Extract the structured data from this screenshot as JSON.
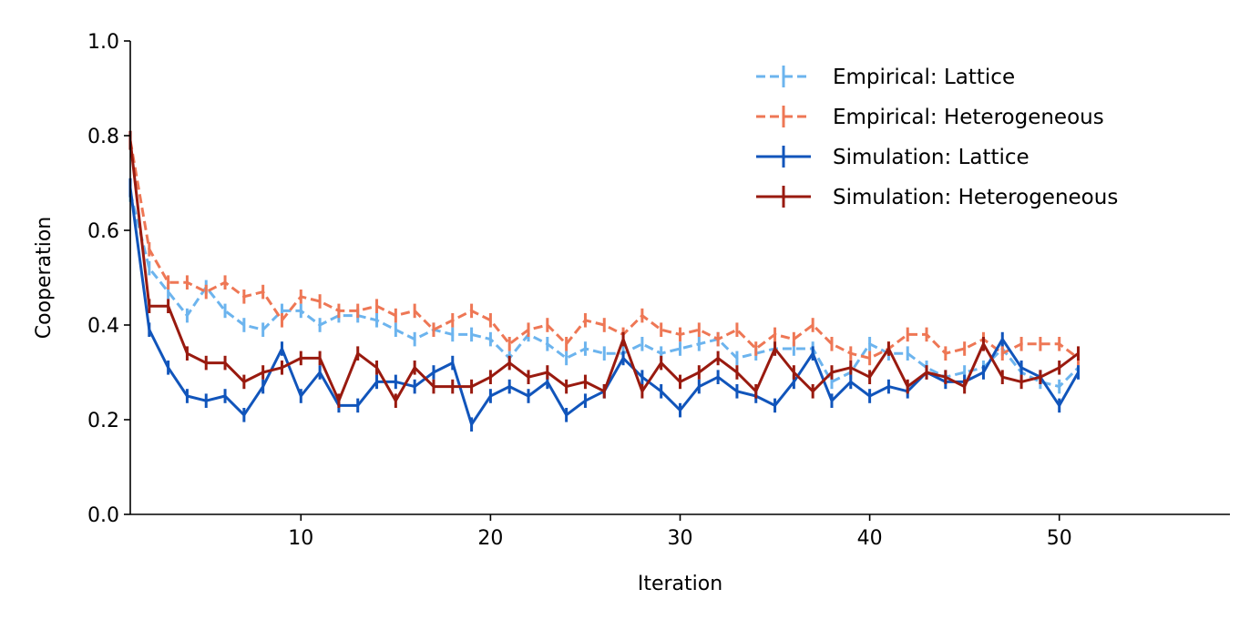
{
  "chart_data": {
    "type": "line",
    "title": "",
    "xlabel": "Iteration",
    "ylabel": "Cooperation",
    "xlim": [
      1,
      59
    ],
    "ylim": [
      0.0,
      1.0
    ],
    "xticks": [
      10,
      20,
      30,
      40,
      50
    ],
    "xtick_labels": [
      "10",
      "20",
      "30",
      "40",
      "50"
    ],
    "yticks": [
      0.0,
      0.2,
      0.4,
      0.6,
      0.8,
      1.0
    ],
    "ytick_labels": [
      "0.0",
      "0.2",
      "0.4",
      "0.6",
      "0.8",
      "1.0"
    ],
    "grid": false,
    "legend_position": "top-right",
    "series": [
      {
        "name": "Empirical: Lattice",
        "color": "#6cb4ee",
        "style": "dashed",
        "x": [
          1,
          2,
          3,
          4,
          5,
          6,
          7,
          8,
          9,
          10,
          11,
          12,
          13,
          14,
          15,
          16,
          17,
          18,
          19,
          20,
          21,
          22,
          23,
          24,
          25,
          26,
          27,
          28,
          29,
          30,
          31,
          32,
          33,
          34,
          35,
          36,
          37,
          38,
          39,
          40,
          41,
          42,
          43,
          44,
          45,
          46,
          47,
          48,
          49,
          50,
          51
        ],
        "y": [
          0.68,
          0.52,
          0.47,
          0.42,
          0.48,
          0.43,
          0.4,
          0.39,
          0.43,
          0.43,
          0.4,
          0.42,
          0.42,
          0.41,
          0.39,
          0.37,
          0.39,
          0.38,
          0.38,
          0.37,
          0.33,
          0.38,
          0.36,
          0.33,
          0.35,
          0.34,
          0.34,
          0.36,
          0.34,
          0.35,
          0.36,
          0.37,
          0.33,
          0.34,
          0.35,
          0.35,
          0.35,
          0.28,
          0.3,
          0.36,
          0.34,
          0.34,
          0.31,
          0.29,
          0.3,
          0.31,
          0.35,
          0.3,
          0.28,
          0.27,
          0.31
        ],
        "err": [
          0.02,
          0.015,
          0.015,
          0.015,
          0.015,
          0.015,
          0.015,
          0.015,
          0.015,
          0.015,
          0.015,
          0.015,
          0.015,
          0.015,
          0.015,
          0.015,
          0.015,
          0.015,
          0.015,
          0.015,
          0.015,
          0.015,
          0.015,
          0.015,
          0.015,
          0.015,
          0.015,
          0.015,
          0.015,
          0.015,
          0.015,
          0.015,
          0.015,
          0.015,
          0.015,
          0.015,
          0.015,
          0.015,
          0.015,
          0.015,
          0.015,
          0.015,
          0.015,
          0.015,
          0.015,
          0.015,
          0.015,
          0.015,
          0.015,
          0.015,
          0.015
        ]
      },
      {
        "name": "Empirical: Heterogeneous",
        "color": "#ee7755",
        "style": "dashed",
        "x": [
          1,
          2,
          3,
          4,
          5,
          6,
          7,
          8,
          9,
          10,
          11,
          12,
          13,
          14,
          15,
          16,
          17,
          18,
          19,
          20,
          21,
          22,
          23,
          24,
          25,
          26,
          27,
          28,
          29,
          30,
          31,
          32,
          33,
          34,
          35,
          36,
          37,
          38,
          39,
          40,
          41,
          42,
          43,
          44,
          45,
          46,
          47,
          48,
          49,
          50,
          51
        ],
        "y": [
          0.79,
          0.56,
          0.49,
          0.49,
          0.47,
          0.49,
          0.46,
          0.47,
          0.41,
          0.46,
          0.45,
          0.43,
          0.43,
          0.44,
          0.42,
          0.43,
          0.39,
          0.41,
          0.43,
          0.41,
          0.36,
          0.39,
          0.4,
          0.36,
          0.41,
          0.4,
          0.38,
          0.42,
          0.39,
          0.38,
          0.39,
          0.37,
          0.39,
          0.35,
          0.38,
          0.37,
          0.4,
          0.36,
          0.34,
          0.33,
          0.35,
          0.38,
          0.38,
          0.34,
          0.35,
          0.37,
          0.34,
          0.36,
          0.36,
          0.36,
          0.33
        ],
        "err": [
          0.02,
          0.015,
          0.015,
          0.015,
          0.015,
          0.015,
          0.015,
          0.015,
          0.015,
          0.015,
          0.015,
          0.015,
          0.015,
          0.015,
          0.015,
          0.015,
          0.015,
          0.015,
          0.015,
          0.015,
          0.015,
          0.015,
          0.015,
          0.015,
          0.015,
          0.015,
          0.015,
          0.015,
          0.015,
          0.015,
          0.015,
          0.015,
          0.015,
          0.015,
          0.015,
          0.015,
          0.015,
          0.015,
          0.015,
          0.015,
          0.015,
          0.015,
          0.015,
          0.015,
          0.015,
          0.015,
          0.015,
          0.015,
          0.015,
          0.015,
          0.015
        ]
      },
      {
        "name": "Simulation: Lattice",
        "color": "#1155bb",
        "style": "solid",
        "x": [
          1,
          2,
          3,
          4,
          5,
          6,
          7,
          8,
          9,
          10,
          11,
          12,
          13,
          14,
          15,
          16,
          17,
          18,
          19,
          20,
          21,
          22,
          23,
          24,
          25,
          26,
          27,
          28,
          29,
          30,
          31,
          32,
          33,
          34,
          35,
          36,
          37,
          38,
          39,
          40,
          41,
          42,
          43,
          44,
          45,
          46,
          47,
          48,
          49,
          50,
          51
        ],
        "y": [
          0.69,
          0.39,
          0.31,
          0.25,
          0.24,
          0.25,
          0.21,
          0.27,
          0.35,
          0.25,
          0.3,
          0.23,
          0.23,
          0.28,
          0.28,
          0.27,
          0.3,
          0.32,
          0.19,
          0.25,
          0.27,
          0.25,
          0.28,
          0.21,
          0.24,
          0.26,
          0.33,
          0.29,
          0.26,
          0.22,
          0.27,
          0.29,
          0.26,
          0.25,
          0.23,
          0.28,
          0.34,
          0.24,
          0.28,
          0.25,
          0.27,
          0.26,
          0.3,
          0.28,
          0.28,
          0.3,
          0.37,
          0.31,
          0.29,
          0.23,
          0.3
        ],
        "err": [
          0.02,
          0.015,
          0.015,
          0.015,
          0.015,
          0.015,
          0.015,
          0.015,
          0.015,
          0.015,
          0.015,
          0.015,
          0.015,
          0.015,
          0.015,
          0.015,
          0.015,
          0.015,
          0.015,
          0.015,
          0.015,
          0.015,
          0.015,
          0.015,
          0.015,
          0.015,
          0.015,
          0.015,
          0.015,
          0.015,
          0.015,
          0.015,
          0.015,
          0.015,
          0.015,
          0.015,
          0.015,
          0.015,
          0.015,
          0.015,
          0.015,
          0.015,
          0.015,
          0.015,
          0.015,
          0.015,
          0.015,
          0.015,
          0.015,
          0.015,
          0.015
        ]
      },
      {
        "name": "Simulation: Heterogeneous",
        "color": "#991a0f",
        "style": "solid",
        "x": [
          1,
          2,
          3,
          4,
          5,
          6,
          7,
          8,
          9,
          10,
          11,
          12,
          13,
          14,
          15,
          16,
          17,
          18,
          19,
          20,
          21,
          22,
          23,
          24,
          25,
          26,
          27,
          28,
          29,
          30,
          31,
          32,
          33,
          34,
          35,
          36,
          37,
          38,
          39,
          40,
          41,
          42,
          43,
          44,
          45,
          46,
          47,
          48,
          49,
          50,
          51
        ],
        "y": [
          0.79,
          0.44,
          0.44,
          0.34,
          0.32,
          0.32,
          0.28,
          0.3,
          0.31,
          0.33,
          0.33,
          0.24,
          0.34,
          0.31,
          0.24,
          0.31,
          0.27,
          0.27,
          0.27,
          0.29,
          0.32,
          0.29,
          0.3,
          0.27,
          0.28,
          0.26,
          0.37,
          0.26,
          0.32,
          0.28,
          0.3,
          0.33,
          0.3,
          0.26,
          0.35,
          0.3,
          0.26,
          0.3,
          0.31,
          0.29,
          0.35,
          0.27,
          0.3,
          0.29,
          0.27,
          0.36,
          0.29,
          0.28,
          0.29,
          0.31,
          0.34
        ],
        "err": [
          0.02,
          0.015,
          0.015,
          0.015,
          0.015,
          0.015,
          0.015,
          0.015,
          0.015,
          0.015,
          0.015,
          0.015,
          0.015,
          0.015,
          0.015,
          0.015,
          0.015,
          0.015,
          0.015,
          0.015,
          0.015,
          0.015,
          0.015,
          0.015,
          0.015,
          0.015,
          0.015,
          0.015,
          0.015,
          0.015,
          0.015,
          0.015,
          0.015,
          0.015,
          0.015,
          0.015,
          0.015,
          0.015,
          0.015,
          0.015,
          0.015,
          0.015,
          0.015,
          0.015,
          0.015,
          0.015,
          0.015,
          0.015,
          0.015,
          0.015,
          0.015
        ]
      }
    ]
  }
}
